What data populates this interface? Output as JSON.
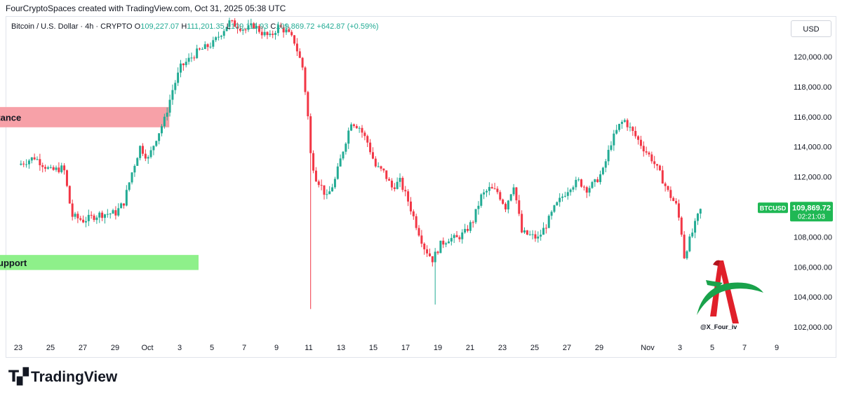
{
  "header": {
    "attribution": "FourCryptoSpaces created with TradingView.com, Oct 31, 2025 05:38 UTC"
  },
  "legend": {
    "symbol": "Bitcoin / U.S. Dollar · 4h · CRYPTO",
    "open_label": "O",
    "open": "109,227.07",
    "high_label": "H",
    "high": "111,201.35",
    "low_label": "L",
    "low": "109,111.93",
    "close_label": "C",
    "close": "109,869.72",
    "change": "+642.87 (+0.59%)"
  },
  "price_axis": {
    "currency": "USD",
    "ticks": [
      "120,000.00",
      "118,000.00",
      "116,000.00",
      "114,000.00",
      "112,000.00",
      "110,000.00",
      "108,000.00",
      "106,000.00",
      "104,000.00",
      "102,000.00"
    ]
  },
  "time_axis": {
    "ticks": [
      "23",
      "25",
      "27",
      "29",
      "Oct",
      "3",
      "5",
      "7",
      "9",
      "11",
      "13",
      "15",
      "17",
      "19",
      "21",
      "23",
      "25",
      "27",
      "29",
      "Nov",
      "3",
      "5",
      "7",
      "9"
    ]
  },
  "price_label": {
    "symbol": "BTCUSD",
    "price": "109,869.72",
    "countdown": "02:21:03"
  },
  "zones": {
    "resistance_label": "Resistance",
    "support_label": "Support"
  },
  "watermark": {
    "handle": "@X_Four_iv"
  },
  "footer": {
    "brand": "TradingView"
  },
  "colors": {
    "up": "#22ab94",
    "down": "#f23645",
    "resistance_fill": "#f7a1a8",
    "support_fill": "#8ef08a",
    "price_label_bg": "#1fb854"
  },
  "chart_data": {
    "type": "candlestick",
    "timeframe": "4h",
    "ylim": [
      101000,
      121500
    ],
    "grid": false,
    "zones": [
      {
        "name": "Resistance",
        "from": 115300,
        "to": 116650,
        "start_day": 11.1,
        "end_day": 32.3
      },
      {
        "name": "Support",
        "from": 105800,
        "to": 106800,
        "start_day": 10.8,
        "end_day": 34.1
      }
    ],
    "anchors": [
      [
        23.0,
        112800
      ],
      [
        24.0,
        113300
      ],
      [
        25.0,
        112400
      ],
      [
        25.8,
        112600
      ],
      [
        26.3,
        109400
      ],
      [
        27.0,
        109100
      ],
      [
        28.0,
        109500
      ],
      [
        29.0,
        109600
      ],
      [
        29.5,
        110300
      ],
      [
        30.0,
        112300
      ],
      [
        30.5,
        114000
      ],
      [
        31.0,
        113200
      ],
      [
        31.5,
        114600
      ],
      [
        32.0,
        115800
      ],
      [
        32.5,
        117800
      ],
      [
        33.0,
        119300
      ],
      [
        34.0,
        120300
      ],
      [
        35.0,
        120900
      ],
      [
        35.5,
        121600
      ],
      [
        36.0,
        122300
      ],
      [
        37.0,
        121800
      ],
      [
        37.5,
        122100
      ],
      [
        38.0,
        121600
      ],
      [
        38.5,
        121300
      ],
      [
        39.0,
        122000
      ],
      [
        39.5,
        121700
      ],
      [
        40.0,
        121000
      ],
      [
        40.5,
        119300
      ],
      [
        40.8,
        116500
      ],
      [
        41.0,
        113500
      ],
      [
        41.3,
        112000
      ],
      [
        41.6,
        111500
      ],
      [
        42.0,
        110600
      ],
      [
        42.5,
        111800
      ],
      [
        43.0,
        113800
      ],
      [
        43.5,
        115700
      ],
      [
        44.0,
        115300
      ],
      [
        44.5,
        114300
      ],
      [
        45.0,
        112700
      ],
      [
        45.5,
        112300
      ],
      [
        46.0,
        111300
      ],
      [
        46.5,
        111700
      ],
      [
        47.0,
        110400
      ],
      [
        47.5,
        108800
      ],
      [
        48.0,
        107300
      ],
      [
        48.5,
        106500
      ],
      [
        49.0,
        107500
      ],
      [
        49.5,
        107900
      ],
      [
        50.0,
        107900
      ],
      [
        50.5,
        108300
      ],
      [
        51.0,
        109100
      ],
      [
        51.5,
        110700
      ],
      [
        52.0,
        111200
      ],
      [
        52.5,
        111000
      ],
      [
        53.0,
        110000
      ],
      [
        53.5,
        111500
      ],
      [
        54.0,
        108300
      ],
      [
        54.5,
        108100
      ],
      [
        55.0,
        107900
      ],
      [
        55.5,
        108800
      ],
      [
        56.0,
        109900
      ],
      [
        56.5,
        110700
      ],
      [
        57.0,
        111400
      ],
      [
        57.5,
        111700
      ],
      [
        58.0,
        111200
      ],
      [
        58.5,
        111600
      ],
      [
        59.0,
        112400
      ],
      [
        59.5,
        114300
      ],
      [
        60.0,
        115400
      ],
      [
        60.3,
        115800
      ],
      [
        61.0,
        114700
      ],
      [
        61.5,
        113900
      ],
      [
        62.0,
        113200
      ],
      [
        62.5,
        112200
      ],
      [
        63.0,
        111000
      ],
      [
        63.5,
        110100
      ],
      [
        63.8,
        108600
      ],
      [
        64.0,
        106700
      ],
      [
        64.2,
        107400
      ],
      [
        64.5,
        108300
      ],
      [
        65.0,
        109869.72
      ]
    ]
  }
}
